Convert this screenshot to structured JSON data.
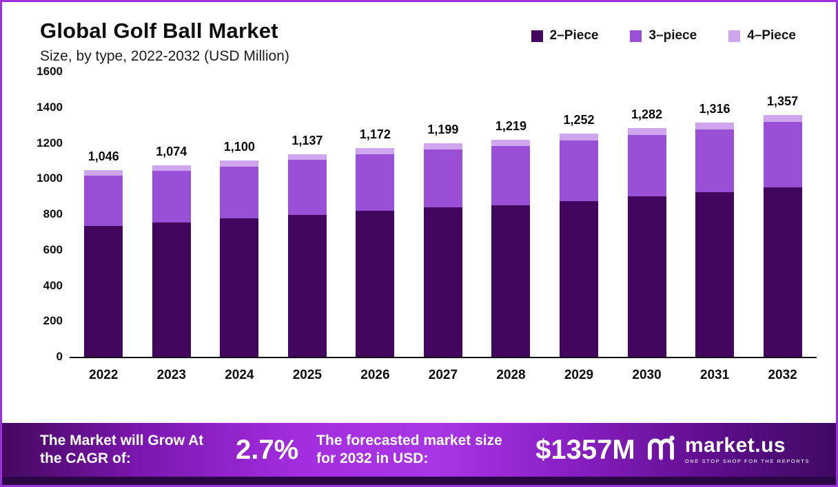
{
  "header": {
    "title": "Global Golf Ball Market",
    "subtitle": "Size, by type, 2022-2032 (USD Million)"
  },
  "legend": [
    {
      "label": "2–Piece",
      "color": "#42065f"
    },
    {
      "label": "3–piece",
      "color": "#9a50d6"
    },
    {
      "label": "4–Piece",
      "color": "#cfa6ee"
    }
  ],
  "chart_data": {
    "type": "bar",
    "stacked": true,
    "title": "Global Golf Ball Market Size, by type, 2022-2032 (USD Million)",
    "categories": [
      "2022",
      "2023",
      "2024",
      "2025",
      "2026",
      "2027",
      "2028",
      "2029",
      "2030",
      "2031",
      "2032"
    ],
    "series": [
      {
        "name": "2-Piece",
        "color": "#42065f",
        "values": [
          735,
          755,
          775,
          795,
          820,
          840,
          850,
          875,
          900,
          925,
          950
        ]
      },
      {
        "name": "3-piece",
        "color": "#9a50d6",
        "values": [
          281,
          288,
          293,
          309,
          318,
          324,
          333,
          340,
          344,
          352,
          367
        ]
      },
      {
        "name": "4-Piece",
        "color": "#cfa6ee",
        "values": [
          30,
          31,
          32,
          33,
          34,
          35,
          36,
          37,
          38,
          39,
          40
        ]
      }
    ],
    "totals": [
      1046,
      1074,
      1100,
      1137,
      1172,
      1199,
      1219,
      1252,
      1282,
      1316,
      1357
    ],
    "total_labels": [
      "1,046",
      "1,074",
      "1,100",
      "1,137",
      "1,172",
      "1,199",
      "1,219",
      "1,252",
      "1,282",
      "1,316",
      "1,357"
    ],
    "ylim": [
      0,
      1600
    ],
    "yticks": [
      0,
      200,
      400,
      600,
      800,
      1000,
      1200,
      1400,
      1600
    ],
    "grid": false,
    "legend_position": "top-right"
  },
  "banner": {
    "cagr_label": "The Market will Grow At the CAGR of:",
    "cagr_value": "2.7%",
    "forecast_label": "The forecasted market size for 2032 in USD:",
    "forecast_value": "$1357M",
    "brand": "market.us",
    "brand_tagline": "ONE STOP SHOP FOR THE REPORTS"
  }
}
